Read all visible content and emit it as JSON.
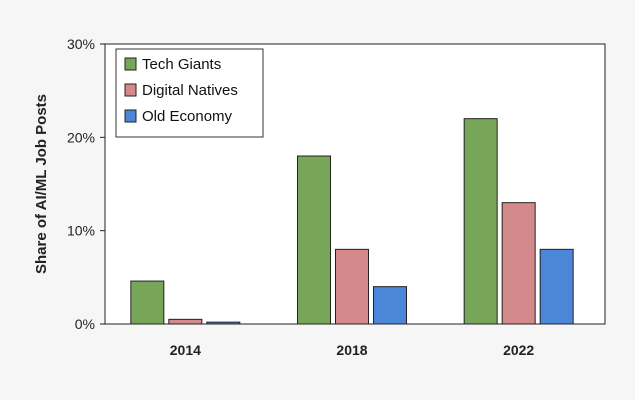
{
  "chart_data": {
    "type": "bar",
    "categories": [
      "2014",
      "2018",
      "2022"
    ],
    "series": [
      {
        "name": "Tech Giants",
        "values": [
          4.6,
          18,
          22
        ],
        "color": "#78a659"
      },
      {
        "name": "Digital Natives",
        "values": [
          0.5,
          8,
          13
        ],
        "color": "#d4898b"
      },
      {
        "name": "Old Economy",
        "values": [
          0.2,
          4,
          8
        ],
        "color": "#4c86d9"
      }
    ],
    "ylabel": "Share of AI/ML Job Posts",
    "ylim": [
      0,
      30
    ],
    "yticks": [
      {
        "value": 0,
        "label": "0%"
      },
      {
        "value": 10,
        "label": "10%"
      },
      {
        "value": 20,
        "label": "20%"
      },
      {
        "value": 30,
        "label": "30%"
      }
    ],
    "grid": false,
    "legend_position": "top-left"
  }
}
